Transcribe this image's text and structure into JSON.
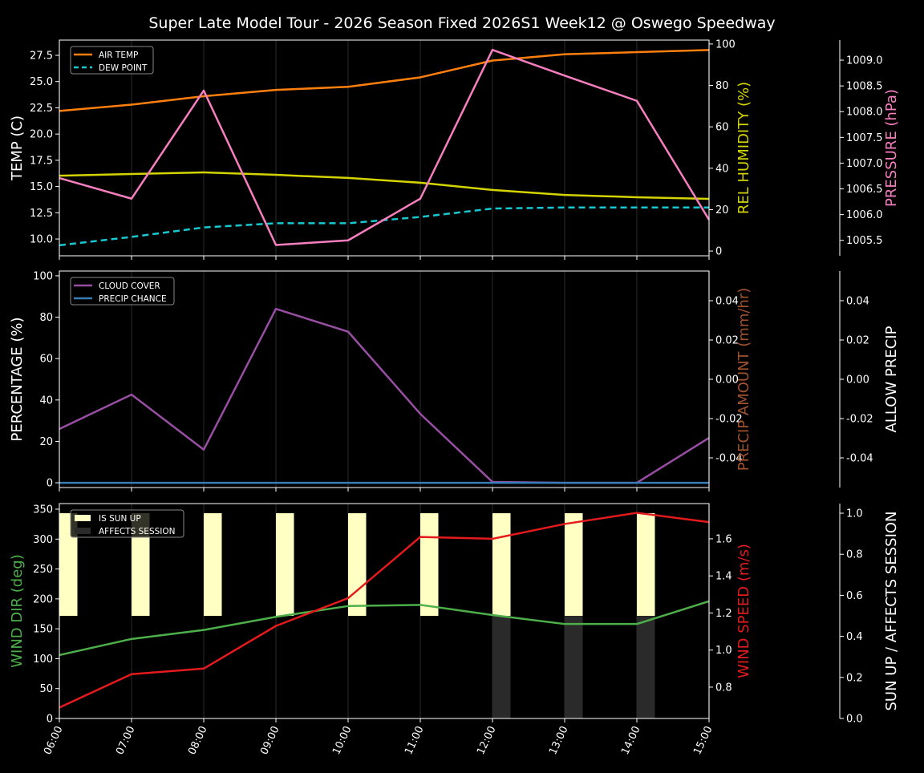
{
  "title": "Super Late Model Tour - 2026 Season Fixed 2026S1 Week12 @ Oswego Speedway",
  "chart_data": [
    {
      "type": "line",
      "x": [
        "06:00",
        "07:00",
        "08:00",
        "09:00",
        "10:00",
        "11:00",
        "12:00",
        "13:00",
        "14:00",
        "15:00"
      ],
      "grid": "vertical",
      "legend_position": "top-left",
      "legend": [
        {
          "label": "AIR TEMP",
          "color": "#ff7f0e",
          "dash": false
        },
        {
          "label": "DEW POINT",
          "color": "#17c8d0",
          "dash": true
        }
      ],
      "axes": [
        {
          "id": "temp",
          "side": "left",
          "label": "TEMP (C)",
          "label_color": "#ffffff",
          "ylim": [
            8.4,
            28.95
          ],
          "ticks": [
            "10.0",
            "12.5",
            "15.0",
            "17.5",
            "20.0",
            "22.5",
            "25.0",
            "27.5"
          ]
        },
        {
          "id": "hum",
          "side": "right",
          "label": "REL HUMIDITY (%)",
          "label_color": "#d4d400",
          "ylim": [
            -2.3,
            101.9
          ],
          "ticks": [
            "0",
            "20",
            "40",
            "60",
            "80",
            "100"
          ]
        },
        {
          "id": "pres",
          "side": "right-outer",
          "label": "PRESSURE (hPa)",
          "label_color": "#f77fbf",
          "ylim": [
            1005.2,
            1009.39
          ],
          "ticks": [
            "1005.5",
            "1006.0",
            "1006.5",
            "1007.0",
            "1007.5",
            "1008.0",
            "1008.5",
            "1009.0"
          ]
        }
      ],
      "series": [
        {
          "name": "AIR TEMP",
          "axis": "temp",
          "color": "#ff7f0e",
          "dash": false,
          "values": [
            22.2,
            22.8,
            23.6,
            24.2,
            24.5,
            25.4,
            27.0,
            27.6,
            27.8,
            28.0
          ]
        },
        {
          "name": "DEW POINT",
          "axis": "temp",
          "color": "#17c8d0",
          "dash": true,
          "values": [
            9.4,
            10.2,
            11.1,
            11.5,
            11.5,
            12.1,
            12.9,
            13.0,
            13.0,
            13.0
          ]
        },
        {
          "axis": "hum",
          "color": "#d4d400",
          "dash": false,
          "values": [
            36.4,
            37.2,
            38.0,
            36.8,
            35.3,
            33.0,
            29.5,
            27.1,
            26.0,
            25.2
          ]
        },
        {
          "axis": "pres",
          "color": "#f77fbf",
          "dash": false,
          "values": [
            1006.71,
            1006.31,
            1008.41,
            1005.41,
            1005.5,
            1006.31,
            1009.2,
            1008.7,
            1008.21,
            1005.9
          ]
        }
      ]
    },
    {
      "type": "line",
      "x": [
        "06:00",
        "07:00",
        "08:00",
        "09:00",
        "10:00",
        "11:00",
        "12:00",
        "13:00",
        "14:00",
        "15:00"
      ],
      "grid": "vertical",
      "legend_position": "top-left",
      "legend": [
        {
          "label": "CLOUD COVER",
          "color": "#984ea3",
          "dash": false
        },
        {
          "label": "PRECIP CHANCE",
          "color": "#377eb8",
          "dash": false
        }
      ],
      "axes": [
        {
          "id": "pct",
          "side": "left",
          "label": "PERCENTAGE (%)",
          "label_color": "#ffffff",
          "ylim": [
            -2.3,
            102.3
          ],
          "ticks": [
            "0",
            "20",
            "40",
            "60",
            "80",
            "100"
          ]
        },
        {
          "id": "amt",
          "side": "right",
          "label": "PRECIP AMOUNT (mm/hr)",
          "label_color": "#a0522d",
          "ylim": [
            -0.0551,
            0.0551
          ],
          "ticks": [
            "-0.04",
            "-0.02",
            "0.00",
            "0.02",
            "0.04"
          ]
        },
        {
          "id": "allow",
          "side": "right-outer",
          "label": "ALLOW PRECIP",
          "label_color": "#ffffff",
          "ylim": [
            -0.0551,
            0.0551
          ],
          "ticks": [
            "-0.04",
            "-0.02",
            "0.00",
            "0.02",
            "0.04"
          ]
        }
      ],
      "series": [
        {
          "name": "CLOUD COVER",
          "axis": "pct",
          "color": "#984ea3",
          "dash": false,
          "values": [
            26,
            42.6,
            16,
            84,
            73,
            33.3,
            0.4,
            0,
            0,
            21.7
          ]
        },
        {
          "name": "PRECIP CHANCE",
          "axis": "pct",
          "color": "#377eb8",
          "dash": false,
          "values": [
            0,
            0,
            0,
            0,
            0,
            0,
            0,
            0,
            0,
            0
          ]
        }
      ]
    },
    {
      "type": "line",
      "x": [
        "06:00",
        "07:00",
        "08:00",
        "09:00",
        "10:00",
        "11:00",
        "12:00",
        "13:00",
        "14:00",
        "15:00"
      ],
      "grid": "vertical",
      "legend_position": "top-left",
      "legend": [
        {
          "label": "IS SUN UP",
          "color": "#ffffc4",
          "dash": false,
          "box": true
        },
        {
          "label": "AFFECTS SESSION",
          "color": "#2a2a2a",
          "dash": false,
          "box": true
        }
      ],
      "axes": [
        {
          "id": "dir",
          "side": "left",
          "label": "WIND DIR (deg)",
          "label_color": "#4daf4a",
          "ylim": [
            0,
            359.4
          ],
          "ticks": [
            "0",
            "50",
            "100",
            "150",
            "200",
            "250",
            "300",
            "350"
          ]
        },
        {
          "id": "spd",
          "side": "right",
          "label": "WIND SPEED (m/s)",
          "label_color": "#e41a1c",
          "ylim": [
            0.631,
            1.79
          ],
          "ticks": [
            "0.8",
            "1.0",
            "1.2",
            "1.4",
            "1.6"
          ]
        },
        {
          "id": "sun",
          "side": "right-outer",
          "label": "SUN UP / AFFECTS SESSION",
          "label_color": "#ffffff",
          "ylim": [
            0,
            1.047
          ],
          "ticks": [
            "0.0",
            "0.2",
            "0.4",
            "0.6",
            "0.8",
            "1.0"
          ]
        }
      ],
      "bars": [
        {
          "name": "IS SUN UP",
          "axis": "sun",
          "color": "#ffffc4",
          "base": 0.5,
          "values": [
            1,
            1,
            1,
            1,
            1,
            1,
            1,
            1,
            1,
            0
          ]
        },
        {
          "name": "AFFECTS SESSION",
          "axis": "sun",
          "color": "#2a2a2a",
          "base": 0,
          "values": [
            0,
            0,
            0,
            0,
            0,
            0,
            1,
            1,
            1,
            0
          ]
        }
      ],
      "series": [
        {
          "axis": "dir",
          "color": "#4daf4a",
          "dash": false,
          "values": [
            106,
            133,
            148,
            170,
            188,
            190,
            173,
            158,
            158,
            196
          ]
        },
        {
          "axis": "spd",
          "color": "#e41a1c",
          "dash": false,
          "values": [
            0.69,
            0.87,
            0.9,
            1.13,
            1.28,
            1.61,
            1.6,
            1.68,
            1.74,
            1.69
          ]
        }
      ]
    }
  ]
}
